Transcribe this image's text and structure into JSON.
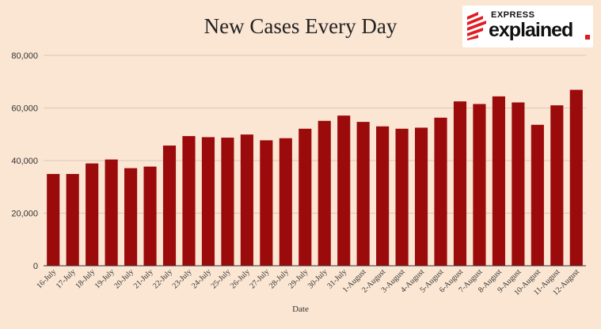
{
  "brand": {
    "top": "EXPRESS",
    "bottom": "explained",
    "red": "#e21b22"
  },
  "chart_data": {
    "type": "bar",
    "title": "New Cases Every Day",
    "xlabel": "Date",
    "ylabel": "",
    "ylim": [
      0,
      80000
    ],
    "yticks": [
      0,
      20000,
      40000,
      60000,
      80000
    ],
    "ytick_labels": [
      "0",
      "20,000",
      "40,000",
      "60,000",
      "80,000"
    ],
    "grid": true,
    "bar_color": "#9b0b0b",
    "categories": [
      "16-July",
      "17-July",
      "18-July",
      "19-July",
      "20-July",
      "21-July",
      "22-July",
      "23-July",
      "24-July",
      "25-July",
      "26-July",
      "27-July",
      "28-July",
      "29-July",
      "30-July",
      "31-July",
      "1-August",
      "2-August",
      "3-August",
      "4-August",
      "5-August",
      "6-August",
      "7-August",
      "8-August",
      "9-August",
      "10-August",
      "11-August",
      "12-August"
    ],
    "values": [
      34900,
      34900,
      38900,
      40400,
      37100,
      37700,
      45700,
      49300,
      48900,
      48700,
      49900,
      47700,
      48500,
      52100,
      55100,
      57100,
      54700,
      53000,
      52100,
      52500,
      56300,
      62500,
      61500,
      64400,
      62100,
      53600,
      61000,
      66900
    ]
  }
}
